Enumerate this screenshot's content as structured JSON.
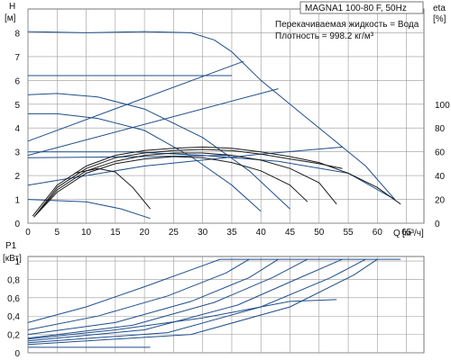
{
  "chart_data": [
    {
      "type": "line",
      "header": {
        "model": "MAGNA1 100-80 F, 50Hz",
        "fluid": "Перекачиваемая жидкость = Вода",
        "density": "Плотность = 998.2 кг/м³"
      },
      "ylabel": "H",
      "yunit": "[м]",
      "y2label": "eta",
      "y2unit": "[%]",
      "xlabel": "Q",
      "xunit": "[м³/ч]",
      "xlim": [
        0,
        68
      ],
      "ylim": [
        0,
        9
      ],
      "y2lim": [
        0,
        180
      ],
      "xticks": [
        "0",
        "5",
        "10",
        "15",
        "20",
        "25",
        "30",
        "35",
        "40",
        "45",
        "50",
        "55",
        "60",
        "65"
      ],
      "yticks": [
        "0",
        "1",
        "2",
        "3",
        "4",
        "5",
        "6",
        "7",
        "8"
      ],
      "y2ticks": [
        "0",
        "20",
        "40",
        "60",
        "80",
        "100"
      ],
      "grid": true,
      "series": [
        {
          "kind": "head",
          "points": [
            [
              0,
              8.05
            ],
            [
              10,
              8.0
            ],
            [
              20,
              8.05
            ],
            [
              28,
              8.0
            ],
            [
              32,
              7.7
            ],
            [
              35,
              7.2
            ]
          ]
        },
        {
          "kind": "head",
          "points": [
            [
              35,
              7.2
            ],
            [
              40,
              6.0
            ],
            [
              47,
              4.6
            ],
            [
              52,
              3.6
            ],
            [
              58,
              2.4
            ],
            [
              63,
              1.0
            ]
          ]
        },
        {
          "kind": "head",
          "points": [
            [
              0,
              6.2
            ],
            [
              35,
              6.2
            ]
          ]
        },
        {
          "kind": "head",
          "points": [
            [
              0,
              3.45
            ],
            [
              37,
              6.8
            ]
          ]
        },
        {
          "kind": "head",
          "points": [
            [
              0,
              2.85
            ],
            [
              43,
              5.65
            ]
          ]
        },
        {
          "kind": "head",
          "points": [
            [
              0,
              5.4
            ],
            [
              5,
              5.45
            ],
            [
              12,
              5.3
            ],
            [
              20,
              4.8
            ],
            [
              30,
              3.6
            ],
            [
              38,
              2.2
            ],
            [
              45,
              0.6
            ]
          ]
        },
        {
          "kind": "head",
          "points": [
            [
              0,
              4.6
            ],
            [
              5,
              4.6
            ],
            [
              12,
              4.4
            ],
            [
              20,
              3.9
            ],
            [
              28,
              2.8
            ],
            [
              35,
              1.6
            ],
            [
              40,
              0.5
            ]
          ]
        },
        {
          "kind": "head",
          "points": [
            [
              0,
              2.75
            ],
            [
              20,
              2.8
            ],
            [
              35,
              2.85
            ]
          ]
        },
        {
          "kind": "head",
          "points": [
            [
              0,
              1.6
            ],
            [
              20,
              2.4
            ],
            [
              40,
              2.9
            ],
            [
              54,
              3.2
            ]
          ]
        },
        {
          "kind": "head",
          "points": [
            [
              0,
              1.0
            ],
            [
              10,
              0.9
            ],
            [
              16,
              0.6
            ],
            [
              21,
              0.2
            ]
          ]
        },
        {
          "kind": "head",
          "points": [
            [
              0,
              3.0
            ],
            [
              18,
              3.0
            ],
            [
              30,
              2.85
            ],
            [
              43,
              2.6
            ],
            [
              55,
              2.1
            ],
            [
              63,
              1.0
            ]
          ]
        },
        {
          "kind": "eff",
          "points": [
            [
              0.8,
              0.3
            ],
            [
              5,
              1.6
            ],
            [
              10,
              2.4
            ],
            [
              15,
              2.85
            ],
            [
              20,
              3.05
            ],
            [
              25,
              3.15
            ],
            [
              30,
              3.2
            ],
            [
              35,
              3.15
            ],
            [
              40,
              3.0
            ],
            [
              45,
              2.8
            ],
            [
              50,
              2.55
            ],
            [
              55,
              2.1
            ],
            [
              60,
              1.5
            ],
            [
              64,
              0.8
            ]
          ]
        },
        {
          "kind": "eff",
          "points": [
            [
              1,
              0.25
            ],
            [
              5,
              1.5
            ],
            [
              10,
              2.3
            ],
            [
              15,
              2.75
            ],
            [
              20,
              2.95
            ],
            [
              25,
              3.05
            ],
            [
              30,
              3.1
            ],
            [
              35,
              3.05
            ],
            [
              40,
              2.9
            ],
            [
              45,
              2.7
            ],
            [
              50,
              2.5
            ],
            [
              54,
              2.3
            ]
          ]
        },
        {
          "kind": "eff",
          "points": [
            [
              1.2,
              0.3
            ],
            [
              5,
              1.4
            ],
            [
              10,
              2.2
            ],
            [
              15,
              2.6
            ],
            [
              20,
              2.85
            ],
            [
              25,
              2.95
            ],
            [
              30,
              2.95
            ],
            [
              35,
              2.85
            ],
            [
              40,
              2.65
            ],
            [
              45,
              2.3
            ],
            [
              50,
              1.7
            ],
            [
              53,
              0.8
            ]
          ]
        },
        {
          "kind": "eff",
          "points": [
            [
              1.4,
              0.35
            ],
            [
              5,
              1.3
            ],
            [
              10,
              2.1
            ],
            [
              15,
              2.5
            ],
            [
              20,
              2.7
            ],
            [
              25,
              2.8
            ],
            [
              30,
              2.75
            ],
            [
              35,
              2.55
            ],
            [
              40,
              2.2
            ],
            [
              45,
              1.6
            ],
            [
              48,
              0.9
            ]
          ]
        },
        {
          "kind": "eff",
          "points": [
            [
              8,
              2.1
            ],
            [
              12,
              2.3
            ],
            [
              15,
              2.15
            ],
            [
              18,
              1.5
            ],
            [
              21,
              0.6
            ]
          ]
        }
      ]
    },
    {
      "type": "line",
      "ylabel": "P1",
      "yunit": "[кВт]",
      "xlim": [
        0,
        68
      ],
      "ylim": [
        0,
        1.05
      ],
      "yticks": [
        "0",
        "0,2",
        "0,4",
        "0,6",
        "0,8",
        "1"
      ],
      "grid": true,
      "series": [
        {
          "kind": "power",
          "points": [
            [
              0,
              0.33
            ],
            [
              10,
              0.5
            ],
            [
              20,
              0.72
            ],
            [
              30,
              0.95
            ],
            [
              33,
              1.02
            ],
            [
              64,
              1.02
            ]
          ]
        },
        {
          "kind": "power",
          "points": [
            [
              0,
              0.25
            ],
            [
              12,
              0.4
            ],
            [
              24,
              0.62
            ],
            [
              34,
              0.87
            ],
            [
              38,
              1.02
            ]
          ]
        },
        {
          "kind": "power",
          "points": [
            [
              0,
              0.2
            ],
            [
              15,
              0.33
            ],
            [
              28,
              0.56
            ],
            [
              38,
              0.82
            ],
            [
              43,
              1.02
            ]
          ]
        },
        {
          "kind": "power",
          "points": [
            [
              0,
              0.16
            ],
            [
              18,
              0.3
            ],
            [
              32,
              0.55
            ],
            [
              42,
              0.82
            ],
            [
              48,
              1.02
            ]
          ]
        },
        {
          "kind": "power",
          "points": [
            [
              0,
              0.13
            ],
            [
              20,
              0.25
            ],
            [
              36,
              0.52
            ],
            [
              46,
              0.8
            ],
            [
              54,
              1.02
            ]
          ]
        },
        {
          "kind": "power",
          "points": [
            [
              0,
              0.11
            ],
            [
              24,
              0.22
            ],
            [
              40,
              0.5
            ],
            [
              52,
              0.82
            ],
            [
              58,
              1.02
            ]
          ]
        },
        {
          "kind": "power",
          "points": [
            [
              0,
              0.09
            ],
            [
              28,
              0.2
            ],
            [
              45,
              0.5
            ],
            [
              56,
              0.85
            ],
            [
              60,
              1.02
            ]
          ]
        },
        {
          "kind": "power",
          "points": [
            [
              0,
              0.15
            ],
            [
              15,
              0.25
            ],
            [
              30,
              0.38
            ],
            [
              40,
              0.5
            ],
            [
              45,
              0.56
            ],
            [
              53,
              0.58
            ]
          ]
        },
        {
          "kind": "power",
          "points": [
            [
              0,
              0.06
            ],
            [
              21,
              0.06
            ]
          ]
        }
      ]
    }
  ]
}
